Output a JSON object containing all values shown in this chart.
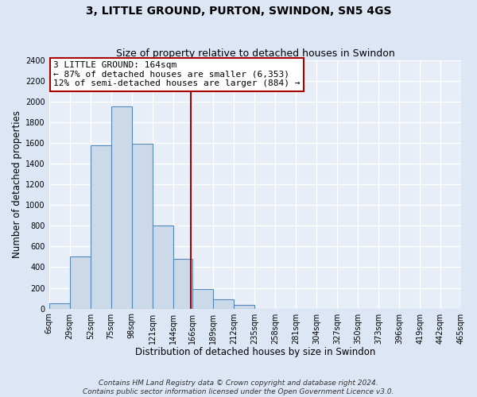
{
  "title": "3, LITTLE GROUND, PURTON, SWINDON, SN5 4GS",
  "subtitle": "Size of property relative to detached houses in Swindon",
  "xlabel": "Distribution of detached houses by size in Swindon",
  "ylabel": "Number of detached properties",
  "bin_edges": [
    6,
    29,
    52,
    75,
    98,
    121,
    144,
    166,
    189,
    212,
    235,
    258,
    281,
    304,
    327,
    350,
    373,
    396,
    419,
    442,
    465
  ],
  "bin_counts": [
    50,
    500,
    1575,
    1950,
    1590,
    800,
    480,
    190,
    90,
    35,
    0,
    0,
    0,
    0,
    0,
    0,
    0,
    0,
    0,
    0
  ],
  "bar_color": "#ccd9e8",
  "bar_edge_color": "#5588bb",
  "property_size": 164,
  "vline_color": "#aa0000",
  "annotation_line1": "3 LITTLE GROUND: 164sqm",
  "annotation_line2": "← 87% of detached houses are smaller (6,353)",
  "annotation_line3": "12% of semi-detached houses are larger (884) →",
  "annotation_box_color": "#ffffff",
  "annotation_box_edge_color": "#aa0000",
  "ylim": [
    0,
    2400
  ],
  "yticks": [
    0,
    200,
    400,
    600,
    800,
    1000,
    1200,
    1400,
    1600,
    1800,
    2000,
    2200,
    2400
  ],
  "xtick_labels": [
    "6sqm",
    "29sqm",
    "52sqm",
    "75sqm",
    "98sqm",
    "121sqm",
    "144sqm",
    "166sqm",
    "189sqm",
    "212sqm",
    "235sqm",
    "258sqm",
    "281sqm",
    "304sqm",
    "327sqm",
    "350sqm",
    "373sqm",
    "396sqm",
    "419sqm",
    "442sqm",
    "465sqm"
  ],
  "footer_line1": "Contains HM Land Registry data © Crown copyright and database right 2024.",
  "footer_line2": "Contains public sector information licensed under the Open Government Licence v3.0.",
  "fig_bg_color": "#dce6f5",
  "plot_bg_color": "#e8eef8",
  "grid_color": "#ffffff",
  "title_fontsize": 10,
  "subtitle_fontsize": 9,
  "axis_label_fontsize": 8.5,
  "tick_fontsize": 7,
  "annotation_fontsize": 8,
  "footer_fontsize": 6.5
}
